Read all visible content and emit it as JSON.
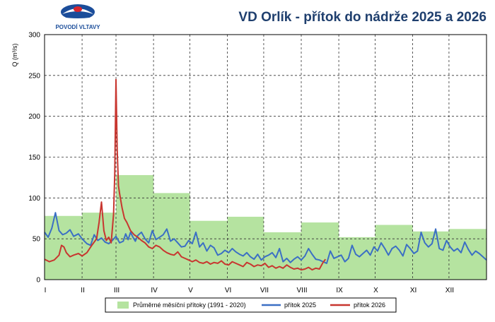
{
  "logo": {
    "text": "POVODÍ VLTAVY",
    "colors": {
      "blue": "#1b4d9a",
      "red": "#d7262e"
    }
  },
  "chart_data": {
    "type": "line",
    "title": "VD Orlík - přítok do nádrže 2025 a 2026",
    "ylabel": "Q (m³/s)",
    "xlabel": "",
    "ylim": [
      0,
      300
    ],
    "yticks": [
      0,
      50,
      100,
      150,
      200,
      250,
      300
    ],
    "xlim": [
      0,
      365
    ],
    "grid": true,
    "legend_position": "bottom",
    "months": [
      "I",
      "II",
      "III",
      "IV",
      "V",
      "VI",
      "VII",
      "VIII",
      "IX",
      "X",
      "XI",
      "XII"
    ],
    "month_starts": [
      0,
      31,
      59,
      90,
      120,
      151,
      181,
      212,
      243,
      273,
      304,
      334
    ],
    "monthly_average": {
      "name": "Průměrné měsíční přítoky (1991 - 2020)",
      "color": "#b5e3a0",
      "values": [
        78,
        82,
        128,
        106,
        72,
        77,
        58,
        70,
        52,
        67,
        59,
        62
      ]
    },
    "series": [
      {
        "name": "přítok 2025",
        "color": "#3b6fc4",
        "x": [
          0,
          3,
          6,
          9,
          12,
          15,
          18,
          21,
          24,
          28,
          31,
          35,
          38,
          41,
          44,
          47,
          50,
          53,
          56,
          59,
          62,
          65,
          67,
          69,
          71,
          73,
          75,
          77,
          80,
          83,
          86,
          89,
          92,
          95,
          98,
          101,
          104,
          107,
          110,
          113,
          116,
          119,
          122,
          125,
          128,
          131,
          134,
          137,
          140,
          143,
          146,
          149,
          152,
          155,
          158,
          161,
          164,
          167,
          170,
          173,
          176,
          179,
          182,
          185,
          188,
          191,
          194,
          197,
          200,
          203,
          206,
          209,
          212,
          215,
          218,
          221,
          224,
          227,
          230,
          233,
          236,
          239,
          242,
          245,
          248,
          251,
          254,
          257,
          260,
          263,
          266,
          269,
          272,
          275,
          278,
          281,
          284,
          287,
          290,
          293,
          296,
          299,
          302,
          305,
          308,
          311,
          314,
          317,
          320,
          323,
          326,
          329,
          332,
          335,
          338,
          341,
          344,
          347,
          350,
          353,
          356,
          359,
          362,
          365
        ],
        "y": [
          58,
          52,
          63,
          82,
          60,
          55,
          57,
          61,
          53,
          56,
          50,
          44,
          42,
          55,
          48,
          51,
          46,
          44,
          48,
          53,
          45,
          47,
          56,
          49,
          58,
          52,
          47,
          54,
          58,
          50,
          45,
          60,
          49,
          52,
          55,
          62,
          47,
          50,
          45,
          40,
          41,
          48,
          44,
          58,
          40,
          45,
          35,
          42,
          39,
          30,
          32,
          36,
          33,
          38,
          34,
          31,
          29,
          33,
          28,
          25,
          31,
          24,
          28,
          30,
          33,
          27,
          38,
          22,
          26,
          21,
          25,
          28,
          24,
          29,
          38,
          31,
          25,
          24,
          22,
          20,
          35,
          26,
          28,
          30,
          22,
          26,
          42,
          31,
          28,
          32,
          36,
          30,
          40,
          35,
          45,
          38,
          30,
          38,
          41,
          36,
          29,
          43,
          38,
          32,
          35,
          58,
          45,
          40,
          44,
          62,
          38,
          36,
          48,
          40,
          35,
          38,
          33,
          46,
          37,
          30,
          35,
          32,
          28,
          24
        ]
      },
      {
        "name": "přítok 2026",
        "color": "#c8362f",
        "x": [
          0,
          4,
          8,
          12,
          14,
          16,
          18,
          21,
          24,
          28,
          31,
          35,
          39,
          43,
          45,
          47,
          49,
          51,
          53,
          55,
          57,
          58,
          59,
          60,
          61,
          62,
          64,
          66,
          68,
          71,
          74,
          77,
          80,
          83,
          86,
          89,
          92,
          95,
          98,
          101,
          104,
          107,
          110,
          113,
          116,
          119,
          122,
          125,
          128,
          131,
          134,
          137,
          140,
          143,
          146,
          149,
          152,
          155,
          158,
          161,
          164,
          167,
          170,
          173,
          176,
          179,
          182,
          185,
          188,
          191,
          194,
          197,
          200,
          203,
          206,
          209,
          212,
          215,
          218,
          221,
          224,
          227,
          230,
          232
        ],
        "y": [
          25,
          22,
          24,
          30,
          42,
          40,
          33,
          28,
          30,
          32,
          29,
          33,
          42,
          50,
          70,
          95,
          60,
          48,
          52,
          45,
          80,
          130,
          245,
          160,
          115,
          105,
          88,
          75,
          70,
          60,
          55,
          52,
          48,
          45,
          40,
          38,
          42,
          40,
          36,
          33,
          31,
          30,
          34,
          28,
          26,
          24,
          22,
          24,
          21,
          20,
          22,
          19,
          21,
          20,
          23,
          19,
          18,
          22,
          20,
          18,
          16,
          21,
          19,
          16,
          18,
          17,
          20,
          15,
          17,
          14,
          16,
          14,
          18,
          15,
          13,
          14,
          12,
          13,
          15,
          12,
          14,
          13,
          21,
          25
        ]
      }
    ]
  }
}
